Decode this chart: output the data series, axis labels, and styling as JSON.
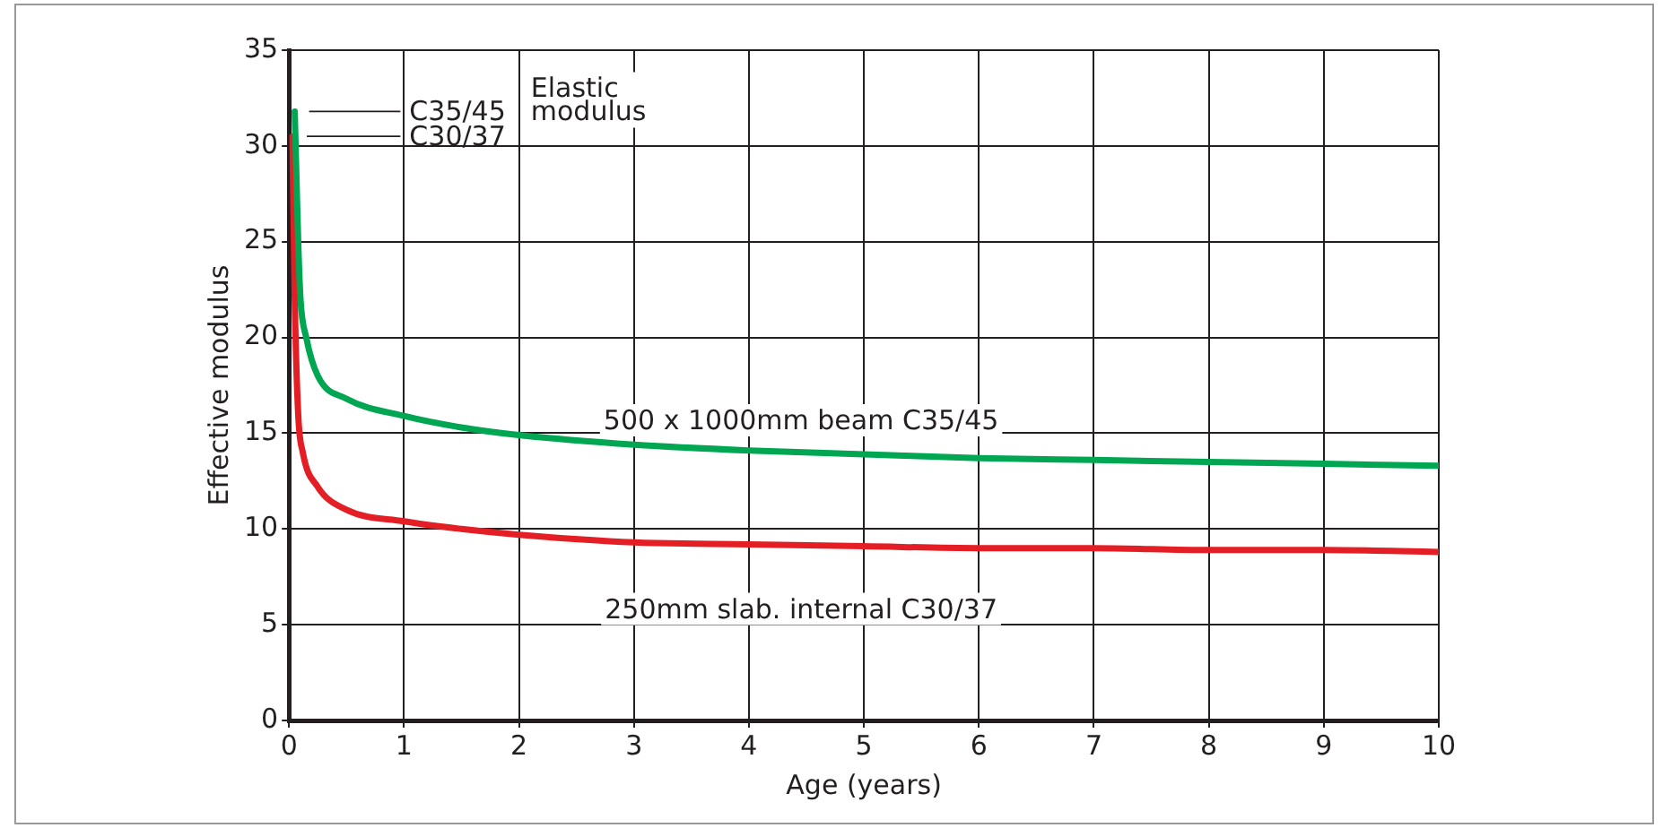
{
  "chart_data": {
    "type": "line",
    "xlabel": "Age (years)",
    "ylabel": "Effective modulus",
    "xlim": [
      0,
      10
    ],
    "xticks": [
      0,
      1,
      2,
      3,
      4,
      5,
      6,
      7,
      8,
      9,
      10
    ],
    "ylim": [
      0,
      35
    ],
    "yticks": [
      0,
      5,
      10,
      15,
      20,
      25,
      30,
      35
    ],
    "grid": true,
    "legend": false,
    "marker": "none",
    "line_style": "solid",
    "series": [
      {
        "name": "500 x 1000mm beam C35/45",
        "color": "#00a651",
        "x": [
          0.05,
          0.08,
          0.1,
          0.15,
          0.25,
          0.5,
          1,
          1.5,
          2,
          3,
          4,
          5,
          6,
          7,
          8,
          9,
          10
        ],
        "values": [
          31.8,
          25,
          22,
          20,
          18,
          16.8,
          15.9,
          15.3,
          14.9,
          14.4,
          14.1,
          13.9,
          13.7,
          13.6,
          13.5,
          13.4,
          13.3
        ]
      },
      {
        "name": "250mm slab. internal C30/37",
        "color": "#e31e24",
        "x": [
          0.03,
          0.05,
          0.08,
          0.12,
          0.25,
          0.5,
          1,
          1.5,
          2,
          3,
          4,
          5,
          6,
          7,
          8,
          9,
          10
        ],
        "values": [
          30.5,
          22,
          16,
          14,
          12.2,
          11,
          10.4,
          10,
          9.7,
          9.3,
          9.2,
          9.1,
          9,
          9,
          8.9,
          8.9,
          8.8
        ]
      }
    ],
    "annotations": [
      {
        "text": "C35/45",
        "x": 0.05,
        "y": 31.8
      },
      {
        "text": "C30/37",
        "x": 0.03,
        "y": 30.5
      },
      "Elastic modulus"
    ]
  }
}
